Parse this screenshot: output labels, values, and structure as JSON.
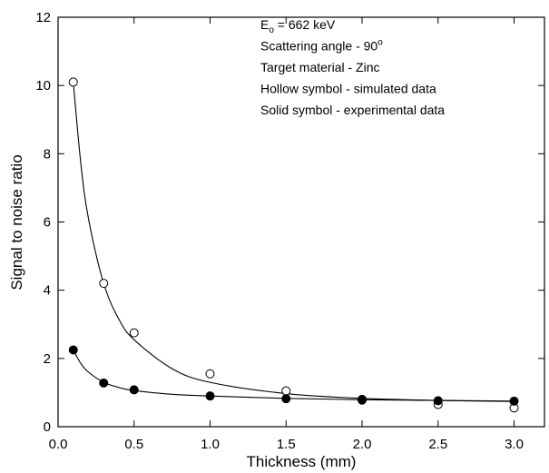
{
  "chart_data": {
    "type": "scatter",
    "x_label": "Thickness (mm)",
    "y_label": "Signal to noise ratio",
    "annotations": [
      [
        "E",
        "o",
        " = 662 keV"
      ],
      [
        "Scattering angle - 90",
        "o"
      ],
      "Target material - Zinc",
      "Hollow symbol - simulated data",
      "Solid symbol - experimental data"
    ],
    "x": [
      0.1,
      0.3,
      0.5,
      1.0,
      1.5,
      2.0,
      2.5,
      3.0
    ],
    "series": [
      {
        "marker": "hollow",
        "color": "#000000",
        "values": [
          10.1,
          4.2,
          2.75,
          1.55,
          1.05,
          0.8,
          0.65,
          0.55
        ]
      },
      {
        "marker": "solid",
        "color": "#000000",
        "values": [
          2.25,
          1.28,
          1.08,
          0.9,
          0.82,
          0.78,
          0.76,
          0.75
        ]
      }
    ],
    "fit_x": [
      0.1,
      0.15,
      0.2,
      0.3,
      0.4,
      0.5,
      0.75,
      1.0,
      1.5,
      2.0,
      2.5,
      3.0
    ],
    "fits": [
      {
        "color": "#000000",
        "values": [
          10.1,
          7.7,
          6.1,
          4.2,
          3.15,
          2.55,
          1.7,
          1.3,
          0.97,
          0.83,
          0.77,
          0.74
        ]
      },
      {
        "color": "#000000",
        "values": [
          2.25,
          1.85,
          1.6,
          1.3,
          1.15,
          1.06,
          0.95,
          0.9,
          0.83,
          0.79,
          0.77,
          0.75
        ]
      }
    ],
    "xlim": [
      0,
      3.2
    ],
    "ylim": [
      0,
      12
    ],
    "xticks": [
      {
        "value": 0,
        "label": "0.0"
      },
      0.5,
      {
        "value": 1,
        "label": "1.0"
      },
      1.5,
      {
        "value": 2,
        "label": "2.0"
      },
      2.5,
      {
        "value": 3,
        "label": "3.0"
      }
    ],
    "yticks": [
      0,
      2,
      4,
      6,
      8,
      10,
      12
    ]
  }
}
